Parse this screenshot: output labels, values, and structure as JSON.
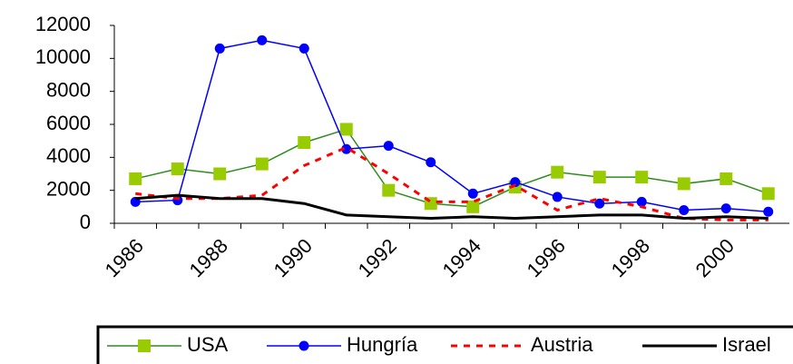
{
  "chart_data": {
    "type": "line",
    "categories": [
      "1986",
      null,
      "1988",
      null,
      "1990",
      null,
      "1992",
      null,
      "1994",
      null,
      "1996",
      null,
      "1998",
      null,
      "2000",
      null
    ],
    "series": [
      {
        "name": "USA",
        "color": "#2e8b1e",
        "marker": "square",
        "marker_color": "#99cc00",
        "width": 1.5,
        "values": [
          2700,
          3300,
          3000,
          3600,
          4900,
          5700,
          2000,
          1200,
          1000,
          2200,
          3100,
          2800,
          2800,
          2400,
          2700,
          1800
        ]
      },
      {
        "name": "Hungría",
        "color": "#0000ff",
        "marker": "circle",
        "marker_color": "#0000ff",
        "width": 1.5,
        "values": [
          1300,
          1400,
          10600,
          11100,
          10600,
          4500,
          4700,
          3700,
          1800,
          2500,
          1600,
          1200,
          1300,
          800,
          900,
          700
        ]
      },
      {
        "name": "Austria",
        "color": "#ff0000",
        "dash": true,
        "width": 3,
        "values": [
          1800,
          1500,
          1500,
          1700,
          3500,
          4600,
          3000,
          1300,
          1300,
          2300,
          800,
          1500,
          1000,
          300,
          200,
          200
        ]
      },
      {
        "name": "Israel",
        "color": "#000000",
        "width": 3,
        "values": [
          1500,
          1700,
          1500,
          1500,
          1200,
          500,
          400,
          300,
          400,
          300,
          400,
          500,
          500,
          300,
          400,
          300
        ]
      }
    ],
    "ylim": [
      0,
      12000
    ],
    "yticks": [
      0,
      2000,
      4000,
      6000,
      8000,
      10000,
      12000
    ],
    "legend": "bottom"
  }
}
